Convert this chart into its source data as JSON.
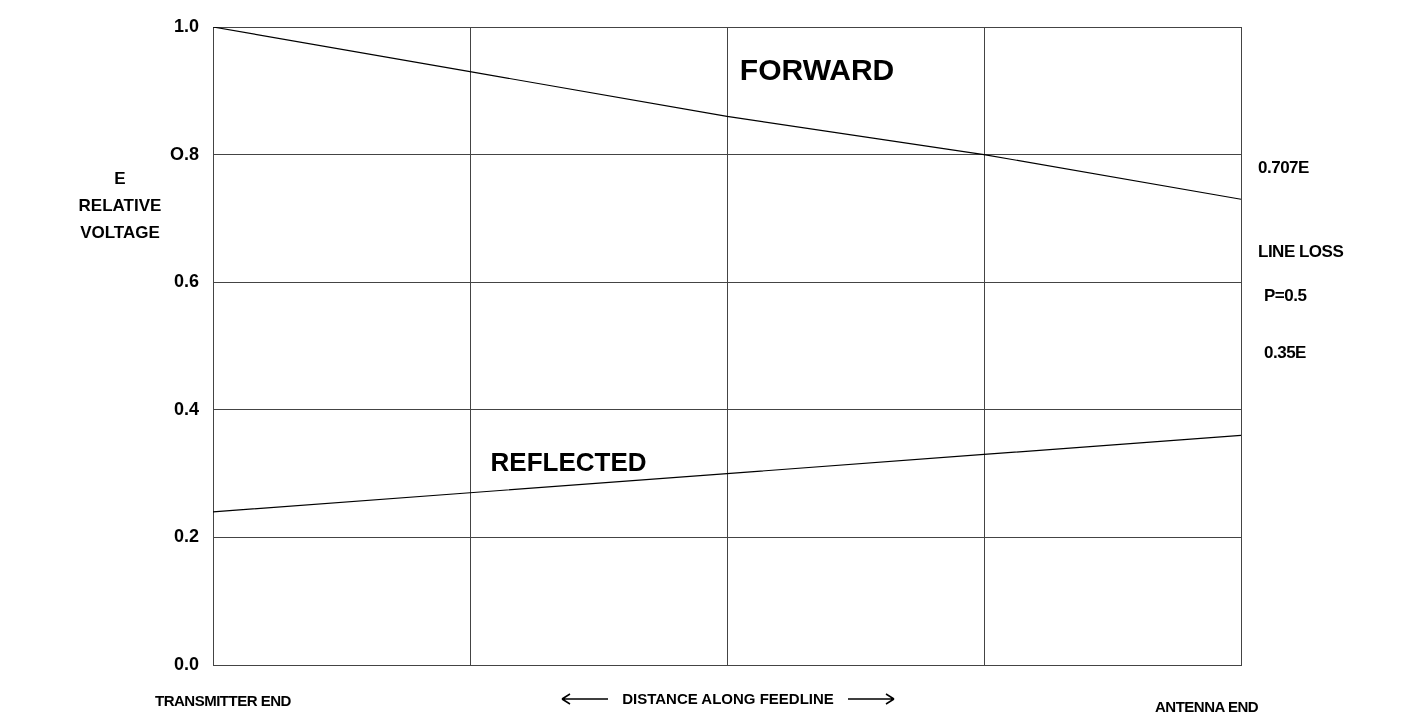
{
  "chart_data": {
    "type": "line",
    "xlabel": "DISTANCE ALONG FEEDLINE",
    "ylabel": "E RELATIVE VOLTAGE",
    "categories": [
      null,
      null,
      null,
      null,
      null
    ],
    "ylim": [
      0,
      1
    ],
    "yticks": [
      {
        "value": 0,
        "label": "0.0"
      },
      {
        "value": 0.2,
        "label": "0.2"
      },
      {
        "value": 0.4,
        "label": "0.4"
      },
      {
        "value": 0.6,
        "label": "0.6"
      },
      {
        "value": 0.8,
        "label": "O.8"
      },
      {
        "value": 1,
        "label": "1.0"
      }
    ],
    "series": [
      {
        "name": "FORWARD",
        "color": "#000000",
        "values": [
          1.0,
          0.93,
          0.86,
          0.8,
          0.73
        ]
      },
      {
        "name": "REFLECTED",
        "color": "#000000",
        "values": [
          0.24,
          0.27,
          0.3,
          0.33,
          0.36
        ]
      }
    ],
    "annotations": [
      "0.707E",
      "LINE LOSS",
      "P=0.5",
      "0.35E",
      "TRANSMITTER END",
      "ANTENNA END"
    ],
    "grid": true,
    "legend": false,
    "marker": "none",
    "line_style": "solid",
    "tick_labels": "y"
  }
}
